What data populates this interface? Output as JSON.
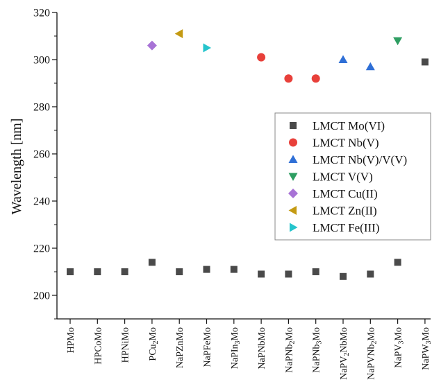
{
  "chart_data": {
    "type": "scatter",
    "ylabel": "Wavelength [nm]",
    "xlabel": "",
    "ylim": [
      190,
      320
    ],
    "yticks": [
      200,
      220,
      240,
      260,
      280,
      300,
      320
    ],
    "grid": false,
    "legend_position": "right",
    "categories": [
      {
        "pre": "HPMo",
        "sub": "",
        "post": ""
      },
      {
        "pre": "HPCoMo",
        "sub": "",
        "post": ""
      },
      {
        "pre": "HPNiMo",
        "sub": "",
        "post": ""
      },
      {
        "pre": "PCu",
        "sub": "2",
        "post": "Mo"
      },
      {
        "pre": "NaPZnMo",
        "sub": "",
        "post": ""
      },
      {
        "pre": "NaPFeMo",
        "sub": "",
        "post": ""
      },
      {
        "pre": "NaPIn",
        "sub": "3",
        "post": "Mo"
      },
      {
        "pre": "NaPNbMo",
        "sub": "",
        "post": ""
      },
      {
        "pre": "NaPNb",
        "sub": "2",
        "post": "Mo"
      },
      {
        "pre": "NaPNb",
        "sub": "3",
        "post": "Mo"
      },
      {
        "pre": "NaPV",
        "sub": "2",
        "post": "NbMo"
      },
      {
        "pre": "NaPVNb",
        "sub": "2",
        "post": "Mo"
      },
      {
        "pre": "NaPV",
        "sub": "3",
        "post": "Mo"
      },
      {
        "pre": "NaPW",
        "sub": "3",
        "post": "Mo"
      }
    ],
    "series": [
      {
        "name": "LMCT Mo(VI)",
        "marker": "square",
        "color": "#4a4a4a",
        "points": [
          [
            0,
            210
          ],
          [
            1,
            210
          ],
          [
            2,
            210
          ],
          [
            3,
            214
          ],
          [
            4,
            210
          ],
          [
            5,
            211
          ],
          [
            6,
            211
          ],
          [
            7,
            209
          ],
          [
            8,
            209
          ],
          [
            9,
            210
          ],
          [
            10,
            208
          ],
          [
            11,
            209
          ],
          [
            12,
            214
          ],
          [
            13,
            299
          ]
        ]
      },
      {
        "name": "LMCT Nb(V)",
        "marker": "circle",
        "color": "#e8403a",
        "points": [
          [
            7,
            301
          ],
          [
            8,
            292
          ],
          [
            9,
            292
          ]
        ]
      },
      {
        "name": "LMCT Nb(V)/V(V)",
        "marker": "triangle-up",
        "color": "#2f6fd6",
        "points": [
          [
            10,
            300
          ],
          [
            11,
            297
          ]
        ]
      },
      {
        "name": "LMCT V(V)",
        "marker": "triangle-down",
        "color": "#2e9e62",
        "points": [
          [
            12,
            308
          ]
        ]
      },
      {
        "name": "LMCT Cu(II)",
        "marker": "diamond",
        "color": "#a873d6",
        "points": [
          [
            3,
            306
          ]
        ]
      },
      {
        "name": "LMCT Zn(II)",
        "marker": "triangle-left",
        "color": "#c49a12",
        "points": [
          [
            4,
            311
          ]
        ]
      },
      {
        "name": "LMCT Fe(III)",
        "marker": "triangle-right",
        "color": "#25c4cc",
        "points": [
          [
            5,
            305
          ]
        ]
      }
    ]
  }
}
